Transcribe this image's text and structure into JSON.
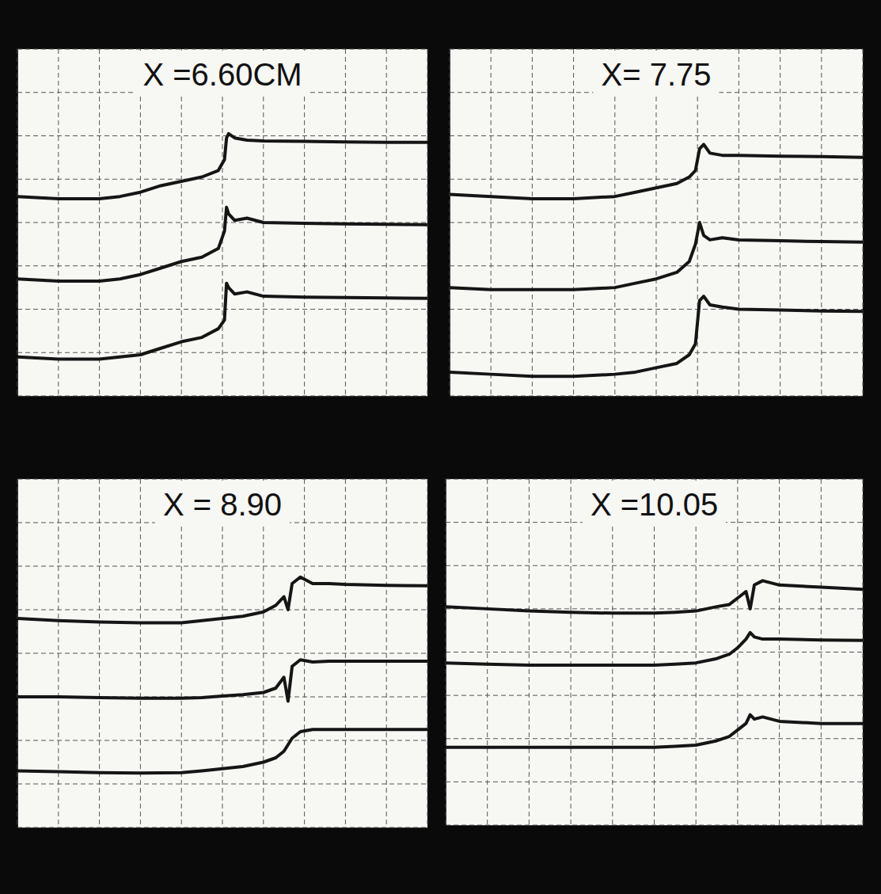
{
  "chart_data": [
    {
      "type": "line",
      "title": "X =6.60CM",
      "grid": true,
      "tick_labels": false,
      "color": "#151515",
      "line_style": "solid",
      "xlim": [
        0,
        10
      ],
      "ylim": [
        0,
        8
      ],
      "xticks": [
        0,
        1,
        2,
        3,
        4,
        5,
        6,
        7,
        8,
        9,
        10
      ],
      "yticks": [
        0,
        1,
        2,
        3,
        4,
        5,
        6,
        7,
        8
      ],
      "x": [
        0,
        1,
        2,
        2.5,
        3,
        3.5,
        4,
        4.5,
        4.9,
        5.05,
        5.1,
        5.15,
        5.3,
        5.6,
        6,
        7,
        8,
        9,
        10
      ],
      "series": [
        {
          "values": [
            4.6,
            4.55,
            4.55,
            4.6,
            4.7,
            4.85,
            4.95,
            5.05,
            5.2,
            5.45,
            5.95,
            6.05,
            5.95,
            5.9,
            5.88,
            5.87,
            5.86,
            5.85,
            5.85
          ]
        },
        {
          "values": [
            2.7,
            2.65,
            2.65,
            2.7,
            2.8,
            2.95,
            3.1,
            3.2,
            3.4,
            3.8,
            4.35,
            4.2,
            4.05,
            4.1,
            4.0,
            3.98,
            3.97,
            3.96,
            3.95
          ]
        },
        {
          "values": [
            0.9,
            0.85,
            0.85,
            0.9,
            0.95,
            1.1,
            1.25,
            1.35,
            1.55,
            1.75,
            2.6,
            2.5,
            2.35,
            2.4,
            2.3,
            2.28,
            2.27,
            2.26,
            2.25
          ]
        }
      ]
    },
    {
      "type": "line",
      "title": "X= 7.75",
      "grid": true,
      "tick_labels": false,
      "color": "#151515",
      "line_style": "solid",
      "xlim": [
        0,
        10
      ],
      "ylim": [
        0,
        8
      ],
      "xticks": [
        0,
        1,
        2,
        3,
        4,
        5,
        6,
        7,
        8,
        9,
        10
      ],
      "yticks": [
        0,
        1,
        2,
        3,
        4,
        5,
        6,
        7,
        8
      ],
      "x": [
        0,
        1,
        2,
        3,
        4,
        4.5,
        5,
        5.5,
        5.8,
        5.95,
        6.05,
        6.15,
        6.3,
        6.6,
        7,
        8,
        9,
        10
      ],
      "series": [
        {
          "values": [
            4.65,
            4.6,
            4.55,
            4.55,
            4.6,
            4.7,
            4.8,
            4.9,
            5.05,
            5.2,
            5.7,
            5.8,
            5.6,
            5.55,
            5.55,
            5.53,
            5.52,
            5.5
          ]
        },
        {
          "values": [
            2.5,
            2.45,
            2.45,
            2.45,
            2.5,
            2.6,
            2.7,
            2.85,
            3.1,
            3.5,
            4.0,
            3.7,
            3.6,
            3.65,
            3.6,
            3.58,
            3.56,
            3.55
          ]
        },
        {
          "values": [
            0.55,
            0.5,
            0.45,
            0.45,
            0.5,
            0.55,
            0.65,
            0.75,
            0.95,
            1.2,
            2.2,
            2.3,
            2.1,
            2.05,
            2.0,
            1.98,
            1.96,
            1.95
          ]
        }
      ]
    },
    {
      "type": "line",
      "title": "X = 8.90",
      "grid": true,
      "tick_labels": false,
      "color": "#151515",
      "line_style": "solid",
      "xlim": [
        0,
        10
      ],
      "ylim": [
        0,
        8
      ],
      "xticks": [
        0,
        1,
        2,
        3,
        4,
        5,
        6,
        7,
        8,
        9,
        10
      ],
      "yticks": [
        0,
        1,
        2,
        3,
        4,
        5,
        6,
        7,
        8
      ],
      "x": [
        0,
        1,
        2,
        3,
        4,
        4.5,
        5,
        5.5,
        6,
        6.3,
        6.5,
        6.6,
        6.7,
        6.9,
        7.2,
        7.6,
        8,
        9,
        10
      ],
      "series": [
        {
          "values": [
            4.8,
            4.75,
            4.72,
            4.7,
            4.7,
            4.75,
            4.8,
            4.85,
            4.95,
            5.1,
            5.3,
            5.0,
            5.6,
            5.75,
            5.6,
            5.6,
            5.58,
            5.56,
            5.55
          ]
        },
        {
          "values": [
            3.0,
            3.0,
            2.98,
            2.97,
            2.97,
            2.98,
            3.02,
            3.05,
            3.1,
            3.2,
            3.45,
            2.9,
            3.7,
            3.85,
            3.8,
            3.82,
            3.82,
            3.82,
            3.82
          ]
        },
        {
          "values": [
            1.3,
            1.28,
            1.26,
            1.25,
            1.26,
            1.3,
            1.35,
            1.4,
            1.5,
            1.6,
            1.75,
            1.9,
            2.05,
            2.2,
            2.25,
            2.25,
            2.25,
            2.25,
            2.25
          ]
        }
      ]
    },
    {
      "type": "line",
      "title": "X =10.05",
      "grid": true,
      "tick_labels": false,
      "color": "#151515",
      "line_style": "solid",
      "xlim": [
        0,
        10
      ],
      "ylim": [
        0,
        8
      ],
      "xticks": [
        0,
        1,
        2,
        3,
        4,
        5,
        6,
        7,
        8,
        9,
        10
      ],
      "yticks": [
        0,
        1,
        2,
        3,
        4,
        5,
        6,
        7,
        8
      ],
      "x": [
        0,
        1,
        2,
        3,
        4,
        5,
        5.5,
        6,
        6.5,
        6.8,
        7,
        7.2,
        7.3,
        7.4,
        7.6,
        8,
        9,
        10
      ],
      "series": [
        {
          "values": [
            5.05,
            5.0,
            4.95,
            4.92,
            4.9,
            4.9,
            4.92,
            4.95,
            5.05,
            5.1,
            5.25,
            5.4,
            5.0,
            5.55,
            5.65,
            5.55,
            5.5,
            5.45
          ]
        },
        {
          "values": [
            3.75,
            3.72,
            3.7,
            3.7,
            3.7,
            3.7,
            3.72,
            3.75,
            3.85,
            3.95,
            4.1,
            4.3,
            4.45,
            4.35,
            4.3,
            4.3,
            4.28,
            4.27
          ]
        },
        {
          "values": [
            1.8,
            1.8,
            1.8,
            1.8,
            1.8,
            1.8,
            1.82,
            1.85,
            1.95,
            2.05,
            2.2,
            2.35,
            2.55,
            2.45,
            2.5,
            2.4,
            2.35,
            2.35
          ]
        }
      ]
    }
  ]
}
